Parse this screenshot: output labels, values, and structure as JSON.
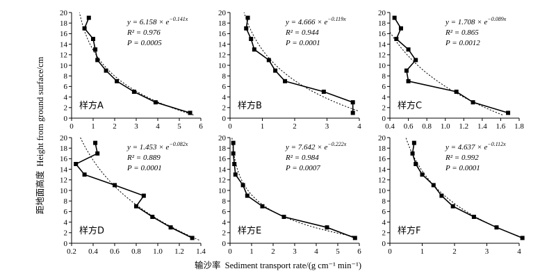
{
  "figure": {
    "ylabel_cn": "距地面高度",
    "ylabel_en": "Height from ground surface/cm",
    "xlabel_cn": "输沙率",
    "xlabel_en": "Sediment transport rate/(g cm⁻¹ min⁻¹)"
  },
  "chart_data": [
    {
      "type": "line",
      "panel": "样方A",
      "equation": "y = 6.158 × e^(−0.141x)",
      "eq_main": "y = 6.158 × e",
      "eq_exp": "−0.141x",
      "r2": "R² = 0.976",
      "p": "P = 0.0005",
      "xlim": [
        0,
        6
      ],
      "xticks": [
        "0",
        "1",
        "2",
        "3",
        "4",
        "5",
        "6"
      ],
      "ylim": [
        0,
        20
      ],
      "yticks": [
        "0",
        "2",
        "4",
        "6",
        "8",
        "10",
        "12",
        "14",
        "16",
        "18",
        "20"
      ],
      "observed": [
        {
          "x": 0.8,
          "y": 19
        },
        {
          "x": 0.6,
          "y": 17
        },
        {
          "x": 1.0,
          "y": 15
        },
        {
          "x": 1.1,
          "y": 13
        },
        {
          "x": 1.2,
          "y": 11
        },
        {
          "x": 1.6,
          "y": 9
        },
        {
          "x": 2.1,
          "y": 7
        },
        {
          "x": 2.9,
          "y": 5
        },
        {
          "x": 3.9,
          "y": 3
        },
        {
          "x": 5.5,
          "y": 1
        }
      ],
      "fit": {
        "a": 6.158,
        "b": 0.141
      }
    },
    {
      "type": "line",
      "panel": "样方B",
      "equation": "y = 4.666 × e^(−0.119x)",
      "eq_main": "y = 4.666 × e",
      "eq_exp": "−0.119x",
      "r2": "R² = 0.944",
      "p": "P = 0.0001",
      "xlim": [
        0,
        4
      ],
      "xticks": [
        "0",
        "1",
        "2",
        "3",
        "4"
      ],
      "ylim": [
        0,
        20
      ],
      "yticks": [
        "0",
        "2",
        "4",
        "6",
        "8",
        "10",
        "12",
        "14",
        "16",
        "18",
        "20"
      ],
      "observed": [
        {
          "x": 0.55,
          "y": 19
        },
        {
          "x": 0.5,
          "y": 17
        },
        {
          "x": 0.65,
          "y": 15
        },
        {
          "x": 0.75,
          "y": 13
        },
        {
          "x": 1.2,
          "y": 11
        },
        {
          "x": 1.4,
          "y": 9
        },
        {
          "x": 1.7,
          "y": 7
        },
        {
          "x": 2.9,
          "y": 5
        },
        {
          "x": 3.8,
          "y": 3
        },
        {
          "x": 3.8,
          "y": 1
        }
      ],
      "fit": {
        "a": 4.666,
        "b": 0.119
      }
    },
    {
      "type": "line",
      "panel": "样方C",
      "equation": "y = 1.708 × e^(−0.089x)",
      "eq_main": "y = 1.708 × e",
      "eq_exp": "−0.089x",
      "r2": "R² = 0.865",
      "p": "P = 0.0012",
      "xlim": [
        0.4,
        1.8
      ],
      "xticks": [
        "0.4",
        "0.6",
        "0.8",
        "1.0",
        "1.2",
        "1.4",
        "1.6",
        "1.8"
      ],
      "ylim": [
        0,
        20
      ],
      "yticks": [
        "0",
        "2",
        "4",
        "6",
        "8",
        "10",
        "12",
        "14",
        "16",
        "18",
        "20"
      ],
      "observed": [
        {
          "x": 0.45,
          "y": 19
        },
        {
          "x": 0.52,
          "y": 17
        },
        {
          "x": 0.47,
          "y": 15
        },
        {
          "x": 0.6,
          "y": 13
        },
        {
          "x": 0.68,
          "y": 11
        },
        {
          "x": 0.58,
          "y": 9
        },
        {
          "x": 0.6,
          "y": 7
        },
        {
          "x": 1.12,
          "y": 5
        },
        {
          "x": 1.3,
          "y": 3
        },
        {
          "x": 1.68,
          "y": 1
        }
      ],
      "fit": {
        "a": 1.708,
        "b": 0.089
      }
    },
    {
      "type": "line",
      "panel": "样方D",
      "equation": "y = 1.453 × e^(−0.082x)",
      "eq_main": "y = 1.453 × e",
      "eq_exp": "−0.082x",
      "r2": "R² = 0.889",
      "p": "P = 0.0001",
      "xlim": [
        0.2,
        1.4
      ],
      "xticks": [
        "0.2",
        "0.4",
        "0.6",
        "0.8",
        "1.0",
        "1.2",
        "1.4"
      ],
      "ylim": [
        0,
        20
      ],
      "yticks": [
        "0",
        "2",
        "4",
        "6",
        "8",
        "10",
        "12",
        "14",
        "16",
        "18",
        "20"
      ],
      "observed": [
        {
          "x": 0.42,
          "y": 19
        },
        {
          "x": 0.44,
          "y": 17
        },
        {
          "x": 0.24,
          "y": 15
        },
        {
          "x": 0.32,
          "y": 13
        },
        {
          "x": 0.6,
          "y": 11
        },
        {
          "x": 0.87,
          "y": 9
        },
        {
          "x": 0.8,
          "y": 7
        },
        {
          "x": 0.95,
          "y": 5
        },
        {
          "x": 1.12,
          "y": 3
        },
        {
          "x": 1.32,
          "y": 1
        }
      ],
      "fit": {
        "a": 1.453,
        "b": 0.082
      }
    },
    {
      "type": "line",
      "panel": "样方E",
      "equation": "y = 7.642 × e^(−0.222x)",
      "eq_main": "y = 7.642 × e",
      "eq_exp": "−0.222x",
      "r2": "R² = 0.984",
      "p": "P = 0.0007",
      "xlim": [
        0,
        6
      ],
      "xticks": [
        "0",
        "1",
        "2",
        "3",
        "4",
        "5",
        "6"
      ],
      "ylim": [
        0,
        20
      ],
      "yticks": [
        "0",
        "2",
        "4",
        "6",
        "8",
        "10",
        "12",
        "14",
        "16",
        "18",
        "20"
      ],
      "observed": [
        {
          "x": 0.15,
          "y": 19
        },
        {
          "x": 0.15,
          "y": 17
        },
        {
          "x": 0.2,
          "y": 15
        },
        {
          "x": 0.25,
          "y": 13
        },
        {
          "x": 0.6,
          "y": 11
        },
        {
          "x": 0.8,
          "y": 9
        },
        {
          "x": 1.5,
          "y": 7
        },
        {
          "x": 2.5,
          "y": 5
        },
        {
          "x": 4.5,
          "y": 3
        },
        {
          "x": 5.8,
          "y": 1
        }
      ],
      "fit": {
        "a": 7.642,
        "b": 0.222
      }
    },
    {
      "type": "line",
      "panel": "样方F",
      "equation": "y = 4.637 × e^(−0.112x)",
      "eq_main": "y = 4.637 × e",
      "eq_exp": "−0.112x",
      "r2": "R² = 0.992",
      "p": "P = 0.0001",
      "xlim": [
        0,
        4
      ],
      "xticks": [
        "0",
        "1",
        "2",
        "3",
        "4"
      ],
      "ylim": [
        0,
        20
      ],
      "yticks": [
        "0",
        "2",
        "4",
        "6",
        "8",
        "10",
        "12",
        "14",
        "16",
        "18",
        "20"
      ],
      "observed": [
        {
          "x": 0.75,
          "y": 19
        },
        {
          "x": 0.7,
          "y": 17
        },
        {
          "x": 0.8,
          "y": 15
        },
        {
          "x": 1.0,
          "y": 13
        },
        {
          "x": 1.35,
          "y": 11
        },
        {
          "x": 1.6,
          "y": 9
        },
        {
          "x": 1.95,
          "y": 7
        },
        {
          "x": 2.6,
          "y": 5
        },
        {
          "x": 3.3,
          "y": 3
        },
        {
          "x": 4.1,
          "y": 1
        }
      ],
      "fit": {
        "a": 4.637,
        "b": 0.112
      }
    }
  ]
}
